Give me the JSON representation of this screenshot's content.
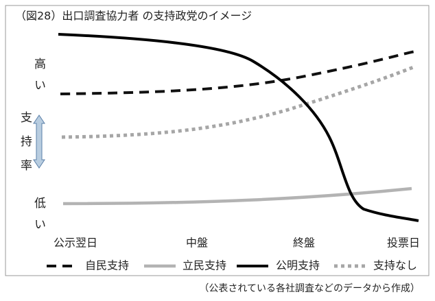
{
  "title": "（図28）出口調査協力者 の支持政党のイメージ",
  "y_labels": {
    "high": "高い",
    "rate": "支持率",
    "low": "低い"
  },
  "x_labels": [
    "公示翌日",
    "中盤",
    "終盤",
    "投票日"
  ],
  "legend": [
    "自民支持",
    "立民支持",
    "公明支持",
    "支持なし"
  ],
  "caption": "（公表されている各社調査などのデータから作成）"
}
